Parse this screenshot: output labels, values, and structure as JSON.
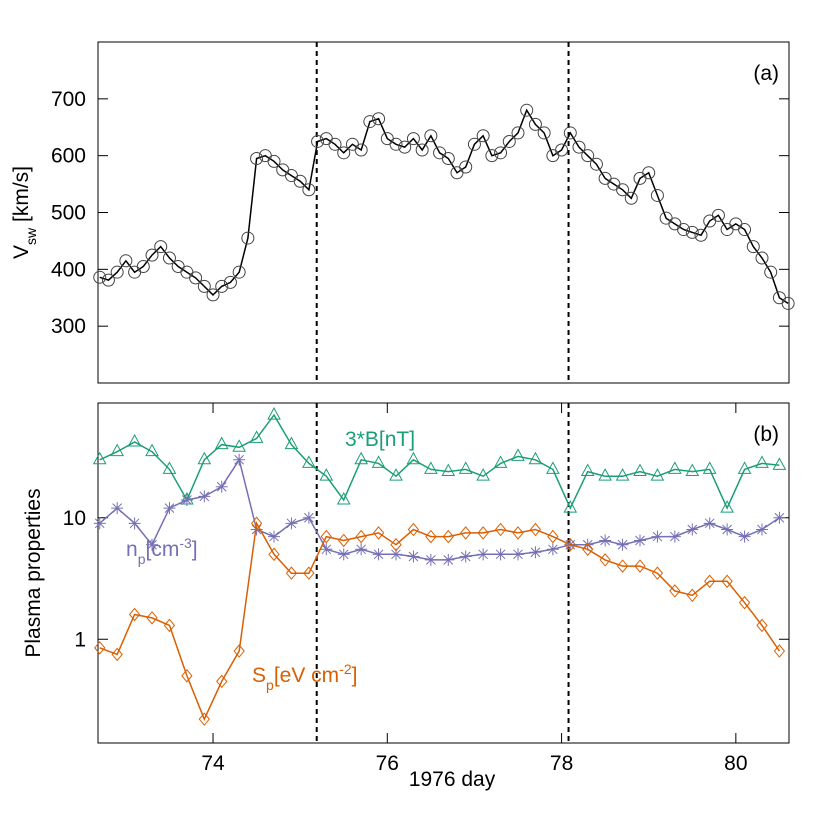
{
  "chart_data": [
    {
      "type": "line",
      "panel_label": "(a)",
      "ylabel_parts": [
        {
          "text": "V"
        },
        {
          "text": "sw",
          "shift": "sub"
        },
        {
          "text": " [km/s]"
        }
      ],
      "xlim": [
        72.68,
        80.61
      ],
      "ylim": [
        200,
        800
      ],
      "yticks": [
        300,
        400,
        500,
        600,
        700
      ],
      "vlines": [
        75.19,
        78.08
      ],
      "x": [
        72.7,
        72.8,
        72.9,
        73.0,
        73.1,
        73.2,
        73.3,
        73.4,
        73.5,
        73.6,
        73.7,
        73.8,
        73.9,
        74.0,
        74.1,
        74.2,
        74.3,
        74.4,
        74.5,
        74.6,
        74.7,
        74.8,
        74.9,
        75.0,
        75.1,
        75.2,
        75.3,
        75.4,
        75.5,
        75.6,
        75.7,
        75.8,
        75.9,
        76.0,
        76.1,
        76.2,
        76.3,
        76.4,
        76.5,
        76.6,
        76.7,
        76.8,
        76.9,
        77.0,
        77.1,
        77.2,
        77.3,
        77.4,
        77.5,
        77.6,
        77.7,
        77.8,
        77.9,
        78.0,
        78.1,
        78.2,
        78.3,
        78.4,
        78.5,
        78.6,
        78.7,
        78.8,
        78.9,
        79.0,
        79.1,
        79.2,
        79.3,
        79.4,
        79.5,
        79.6,
        79.7,
        79.8,
        79.9,
        80.0,
        80.1,
        80.2,
        80.3,
        80.4,
        80.5,
        80.6
      ],
      "series": [
        {
          "color": "#000000",
          "marker": "circle",
          "values": [
            386,
            381,
            395,
            415,
            395,
            405,
            425,
            440,
            420,
            405,
            395,
            385,
            370,
            355,
            370,
            377,
            395,
            455,
            595,
            600,
            590,
            575,
            565,
            555,
            540,
            625,
            630,
            620,
            605,
            620,
            610,
            660,
            665,
            630,
            620,
            615,
            630,
            610,
            635,
            605,
            595,
            570,
            580,
            620,
            635,
            600,
            605,
            625,
            640,
            680,
            655,
            640,
            600,
            610,
            640,
            615,
            600,
            585,
            560,
            550,
            540,
            525,
            560,
            570,
            530,
            490,
            480,
            470,
            465,
            460,
            485,
            495,
            470,
            480,
            470,
            440,
            420,
            395,
            350,
            340
          ]
        }
      ]
    },
    {
      "type": "line",
      "panel_label": "(b)",
      "ylabel": "Plasma properties",
      "xlabel": "1976 day",
      "yscale": "log",
      "xlim": [
        72.68,
        80.61
      ],
      "ylim": [
        0.14,
        88
      ],
      "yticks": [
        1,
        10
      ],
      "xticks": [
        74,
        76,
        78,
        80
      ],
      "vlines": [
        75.19,
        78.08
      ],
      "x": [
        72.7,
        72.9,
        73.1,
        73.3,
        73.5,
        73.7,
        73.9,
        74.1,
        74.3,
        74.5,
        74.7,
        74.9,
        75.1,
        75.3,
        75.5,
        75.7,
        75.9,
        76.1,
        76.3,
        76.5,
        76.7,
        76.9,
        77.1,
        77.3,
        77.5,
        77.7,
        77.9,
        78.1,
        78.3,
        78.5,
        78.7,
        78.9,
        79.1,
        79.3,
        79.5,
        79.7,
        79.9,
        80.1,
        80.3,
        80.5
      ],
      "series": [
        {
          "name_parts": [
            {
              "text": "3*B[nT]"
            }
          ],
          "color": "#1b9e77",
          "marker": "triangle",
          "values": [
            30,
            35,
            42,
            35,
            25,
            14,
            30,
            40,
            38,
            45,
            70,
            40,
            28,
            22,
            14,
            30,
            28,
            22,
            30,
            25,
            24,
            25,
            22,
            28,
            32,
            30,
            25,
            12,
            24,
            22,
            22,
            24,
            22,
            25,
            24,
            25,
            12,
            25,
            28,
            27
          ]
        },
        {
          "name_parts": [
            {
              "text": "n"
            },
            {
              "text": "p",
              "shift": "sub"
            },
            {
              "text": "[cm"
            },
            {
              "text": "-3",
              "shift": "super"
            },
            {
              "text": "]"
            }
          ],
          "color": "#7570b3",
          "marker": "asterisk",
          "values": [
            9,
            12,
            9,
            6,
            12,
            14,
            15,
            18,
            30,
            8,
            7,
            9,
            10,
            5.5,
            5,
            5.5,
            5,
            5,
            4.8,
            4.5,
            4.5,
            4.8,
            5,
            5,
            5,
            5.2,
            5.5,
            6,
            6,
            6.5,
            6,
            6.5,
            7,
            7,
            8,
            9,
            8,
            7,
            8,
            10
          ]
        },
        {
          "name_parts": [
            {
              "text": "S"
            },
            {
              "text": "p",
              "shift": "sub"
            },
            {
              "text": "[eV cm"
            },
            {
              "text": "-2",
              "shift": "super"
            },
            {
              "text": "]"
            }
          ],
          "color": "#d95f02",
          "marker": "diamond",
          "values": [
            0.85,
            0.75,
            1.6,
            1.5,
            1.3,
            0.5,
            0.22,
            0.45,
            0.8,
            9,
            5,
            3.5,
            3.5,
            7,
            6.5,
            7,
            7.5,
            6,
            8,
            7,
            7,
            7.5,
            7.5,
            8,
            7.5,
            8,
            7,
            6,
            5.5,
            4.5,
            4,
            4,
            3.5,
            2.5,
            2.3,
            3,
            3,
            2,
            1.3,
            0.8
          ]
        }
      ]
    }
  ]
}
